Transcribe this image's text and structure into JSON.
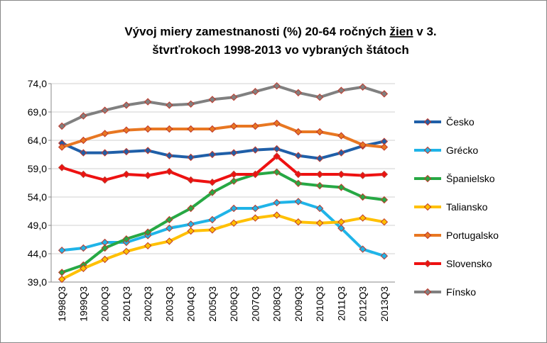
{
  "chart_data": {
    "type": "line",
    "title": [
      [
        "Vývoj miery zamestnanosti  (%) 20-64  ročných ",
        "žien",
        " v 3."
      ],
      [
        "štvrťrokoch 1998-2013  vo vybraných štátoch"
      ]
    ],
    "categories": [
      "1998Q3",
      "1999Q3",
      "2000Q3",
      "2001Q3",
      "2002Q3",
      "2003Q3",
      "2004Q3",
      "2005Q3",
      "2006Q3",
      "2007Q3",
      "2008Q3",
      "2009Q3",
      "2010Q3",
      "2011Q3",
      "2012Q3",
      "2013Q3"
    ],
    "ylim": [
      39,
      74
    ],
    "yticks": [
      {
        "value": 39,
        "label": "39,0"
      },
      {
        "value": 44,
        "label": "44,0"
      },
      {
        "value": 49,
        "label": "49,0"
      },
      {
        "value": 54,
        "label": "54,0"
      },
      {
        "value": 59,
        "label": "59,0"
      },
      {
        "value": 64,
        "label": "64,0"
      },
      {
        "value": 69,
        "label": "69,0"
      },
      {
        "value": 74,
        "label": "74,0"
      }
    ],
    "grid": true,
    "legend": "right",
    "series": [
      {
        "name": "Česko",
        "color": "#1f5fa8",
        "values": [
          63.5,
          61.8,
          61.8,
          62.0,
          62.2,
          61.3,
          61.0,
          61.5,
          61.8,
          62.3,
          62.5,
          61.3,
          60.8,
          61.8,
          63.0,
          63.8
        ]
      },
      {
        "name": "Grécko",
        "color": "#1fb4e8",
        "values": [
          44.6,
          45.0,
          46.0,
          46.0,
          47.2,
          48.5,
          49.2,
          50.0,
          52.0,
          52.0,
          53.0,
          53.2,
          52.0,
          48.5,
          44.8,
          43.6
        ]
      },
      {
        "name": "Španielsko",
        "color": "#27a844",
        "values": [
          40.7,
          42.0,
          45.0,
          46.6,
          47.8,
          50.0,
          52.0,
          54.8,
          56.8,
          58.0,
          58.4,
          56.4,
          56.0,
          55.7,
          54.0,
          53.5
        ]
      },
      {
        "name": "Taliansko",
        "color": "#ffc000",
        "values": [
          39.5,
          41.4,
          43.0,
          44.4,
          45.4,
          46.2,
          48.0,
          48.2,
          49.4,
          50.3,
          50.8,
          49.6,
          49.4,
          49.6,
          50.3,
          49.6
        ]
      },
      {
        "name": "Portugalsko",
        "color": "#e87722",
        "values": [
          62.8,
          64.0,
          65.2,
          65.8,
          66.0,
          66.0,
          66.0,
          66.0,
          66.5,
          66.5,
          67.0,
          65.5,
          65.5,
          64.8,
          63.2,
          62.8
        ]
      },
      {
        "name": "Slovensko",
        "color": "#ee1111",
        "values": [
          59.2,
          58.0,
          57.0,
          58.0,
          57.8,
          58.5,
          57.0,
          56.6,
          58.0,
          58.0,
          61.2,
          58.0,
          58.0,
          58.0,
          57.8,
          58.0
        ]
      },
      {
        "name": "Fínsko",
        "color": "#808080",
        "values": [
          66.5,
          68.3,
          69.3,
          70.2,
          70.8,
          70.2,
          70.4,
          71.2,
          71.6,
          72.6,
          73.6,
          72.4,
          71.6,
          72.8,
          73.4,
          72.2
        ]
      }
    ]
  }
}
